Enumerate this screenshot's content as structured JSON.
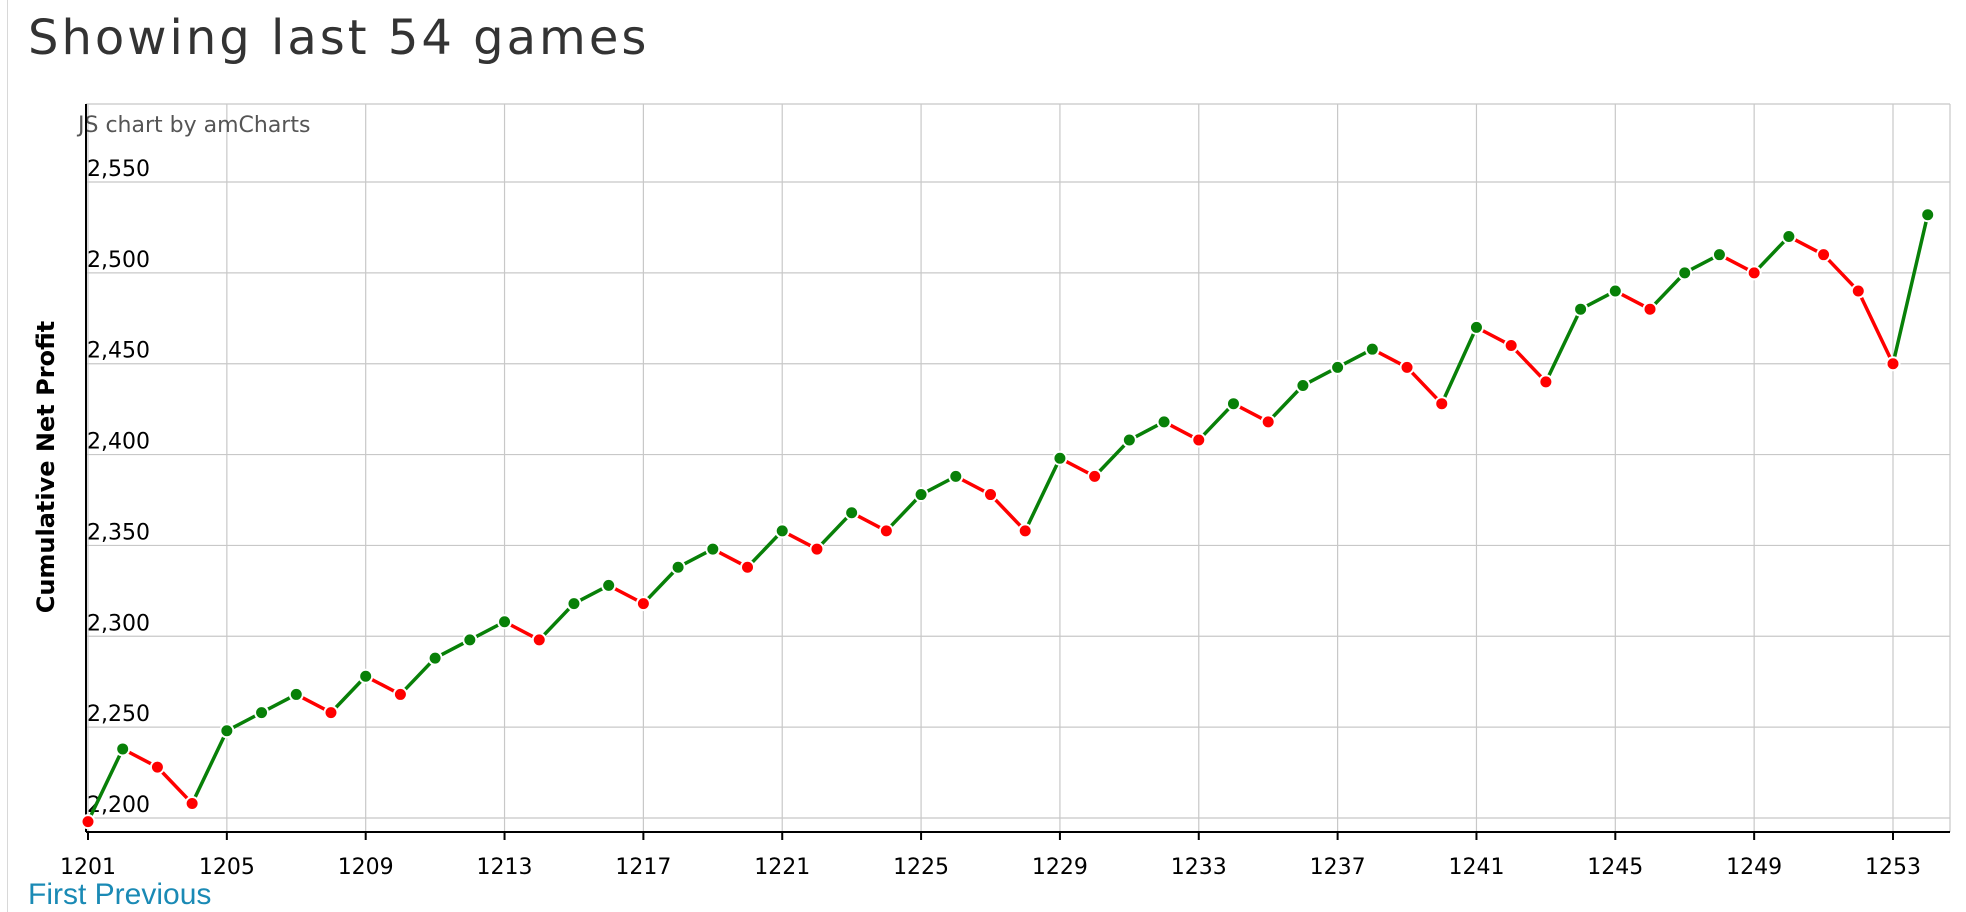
{
  "page": {
    "title": "Showing last 54 games",
    "pagination": {
      "first": "First",
      "previous": "Previous"
    }
  },
  "colors": {
    "win": "#088008",
    "loss": "#ff0000",
    "grid": "#c8c8c8",
    "axis": "#000000"
  },
  "chart_data": {
    "type": "line",
    "credit": "JS chart by amCharts",
    "xlabel": "",
    "ylabel": "Cumulative Net Profit",
    "grid": true,
    "legend": "none",
    "x_range": [
      1201,
      1254
    ],
    "ylim": [
      2200,
      2550
    ],
    "y_ticks": [
      2200,
      2250,
      2300,
      2350,
      2400,
      2450,
      2500,
      2550
    ],
    "y_tick_labels": [
      "2,200",
      "2,250",
      "2,300",
      "2,350",
      "2,400",
      "2,450",
      "2,500",
      "2,550"
    ],
    "x_ticks": [
      1201,
      1205,
      1209,
      1213,
      1217,
      1221,
      1225,
      1229,
      1233,
      1237,
      1241,
      1245,
      1249,
      1253
    ],
    "x_tick_labels": [
      "1201",
      "1205",
      "1209",
      "1213",
      "1217",
      "1221",
      "1225",
      "1229",
      "1233",
      "1237",
      "1241",
      "1245",
      "1249",
      "1253"
    ],
    "x": [
      1201,
      1202,
      1203,
      1204,
      1205,
      1206,
      1207,
      1208,
      1209,
      1210,
      1211,
      1212,
      1213,
      1214,
      1215,
      1216,
      1217,
      1218,
      1219,
      1220,
      1221,
      1222,
      1223,
      1224,
      1225,
      1226,
      1227,
      1228,
      1229,
      1230,
      1231,
      1232,
      1233,
      1234,
      1235,
      1236,
      1237,
      1238,
      1239,
      1240,
      1241,
      1242,
      1243,
      1244,
      1245,
      1246,
      1247,
      1248,
      1249,
      1250,
      1251,
      1252,
      1253,
      1254
    ],
    "series": [
      {
        "values": [
          2198,
          2238,
          2228,
          2208,
          2248,
          2258,
          2268,
          2258,
          2278,
          2268,
          2288,
          2298,
          2308,
          2298,
          2318,
          2328,
          2318,
          2338,
          2348,
          2338,
          2358,
          2348,
          2368,
          2358,
          2378,
          2388,
          2378,
          2358,
          2398,
          2388,
          2408,
          2418,
          2408,
          2428,
          2418,
          2438,
          2448,
          2458,
          2448,
          2428,
          2470,
          2460,
          2440,
          2480,
          2490,
          2480,
          2500,
          2510,
          2500,
          2520,
          2510,
          2490,
          2450,
          2532
        ],
        "outcome": [
          "L",
          "W",
          "L",
          "L",
          "W",
          "W",
          "W",
          "L",
          "W",
          "L",
          "W",
          "W",
          "W",
          "L",
          "W",
          "W",
          "L",
          "W",
          "W",
          "L",
          "W",
          "L",
          "W",
          "L",
          "W",
          "W",
          "L",
          "L",
          "W",
          "L",
          "W",
          "W",
          "L",
          "W",
          "L",
          "W",
          "W",
          "W",
          "L",
          "L",
          "W",
          "L",
          "L",
          "W",
          "W",
          "L",
          "W",
          "W",
          "L",
          "W",
          "L",
          "L",
          "L",
          "W"
        ]
      }
    ]
  }
}
